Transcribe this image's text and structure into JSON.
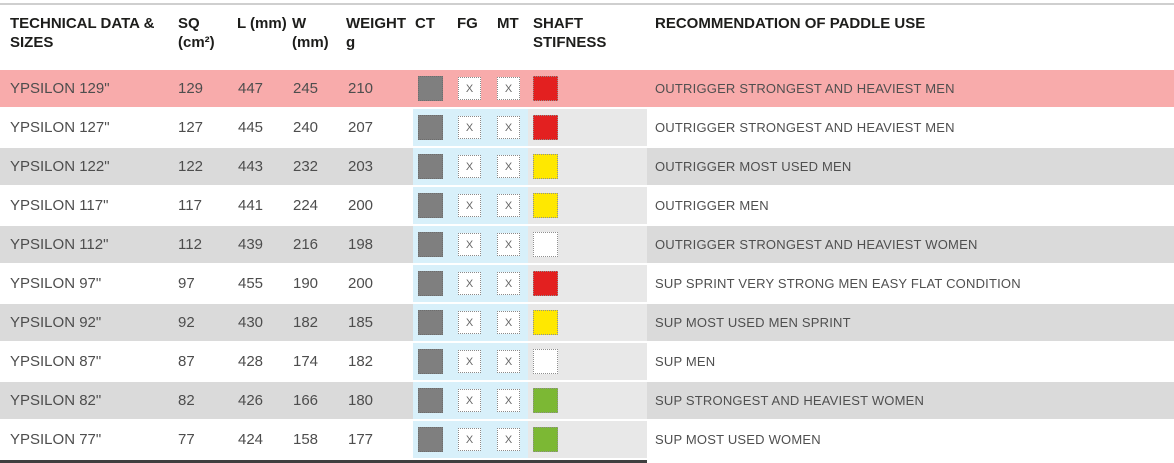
{
  "table": {
    "headers": {
      "name": "TECHNICAL DATA & SIZES",
      "sq": "SQ (cm²)",
      "l": "L (mm)",
      "w": "W (mm)",
      "weight": "WEIGHT g",
      "ct": "CT",
      "fg": "FG",
      "mt": "MT",
      "shaft": "SHAFT STIFNESS",
      "rec": "RECOMMENDATION OF PADDLE USE"
    },
    "rows": [
      {
        "name": "YPSILON 129\"",
        "sq": "129",
        "l": "447",
        "w": "245",
        "weight": "210",
        "ct": true,
        "fg": "x",
        "mt": "x",
        "shaft": "red",
        "rec": "OUTRIGGER STRONGEST AND HEAVIEST MEN",
        "highlight": true
      },
      {
        "name": "YPSILON 127\"",
        "sq": "127",
        "l": "445",
        "w": "240",
        "weight": "207",
        "ct": true,
        "fg": "x",
        "mt": "x",
        "shaft": "red",
        "rec": "OUTRIGGER STRONGEST AND HEAVIEST MEN",
        "highlight": false
      },
      {
        "name": "YPSILON 122\"",
        "sq": "122",
        "l": "443",
        "w": "232",
        "weight": "203",
        "ct": true,
        "fg": "x",
        "mt": "x",
        "shaft": "yellow",
        "rec": "OUTRIGGER MOST USED MEN",
        "highlight": false
      },
      {
        "name": "YPSILON 117\"",
        "sq": "117",
        "l": "441",
        "w": "224",
        "weight": "200",
        "ct": true,
        "fg": "x",
        "mt": "x",
        "shaft": "yellow",
        "rec": "OUTRIGGER MEN",
        "highlight": false
      },
      {
        "name": "YPSILON 112\"",
        "sq": "112",
        "l": "439",
        "w": "216",
        "weight": "198",
        "ct": true,
        "fg": "x",
        "mt": "x",
        "shaft": "white",
        "rec": "OUTRIGGER STRONGEST AND HEAVIEST WOMEN",
        "highlight": false
      },
      {
        "name": "YPSILON 97\"",
        "sq": "97",
        "l": "455",
        "w": "190",
        "weight": "200",
        "ct": true,
        "fg": "x",
        "mt": "x",
        "shaft": "red",
        "rec": "SUP SPRINT VERY STRONG MEN EASY FLAT CONDITION",
        "highlight": false
      },
      {
        "name": "YPSILON 92\"",
        "sq": "92",
        "l": "430",
        "w": "182",
        "weight": "185",
        "ct": true,
        "fg": "x",
        "mt": "x",
        "shaft": "yellow",
        "rec": "SUP MOST USED MEN SPRINT",
        "highlight": false
      },
      {
        "name": "YPSILON 87\"",
        "sq": "87",
        "l": "428",
        "w": "174",
        "weight": "182",
        "ct": true,
        "fg": "x",
        "mt": "x",
        "shaft": "white",
        "rec": "SUP MEN",
        "highlight": false
      },
      {
        "name": "YPSILON 82\"",
        "sq": "82",
        "l": "426",
        "w": "166",
        "weight": "180",
        "ct": true,
        "fg": "x",
        "mt": "x",
        "shaft": "green",
        "rec": "SUP STRONGEST AND HEAVIEST WOMEN",
        "highlight": false
      },
      {
        "name": "YPSILON 77\"",
        "sq": "77",
        "l": "424",
        "w": "158",
        "weight": "177",
        "ct": true,
        "fg": "x",
        "mt": "x",
        "shaft": "green",
        "rec": "SUP MOST USED WOMEN",
        "highlight": false
      }
    ]
  },
  "colors": {
    "highlight_row": "#f8abab",
    "stripe_gray": "#dadada",
    "blue_band": "#d8f0fa",
    "shaft_band": "#e8e8e8",
    "ct_square": "#7f7f7f",
    "shaft": {
      "red": "#e32020",
      "yellow": "#ffe800",
      "white": "#ffffff",
      "green": "#7cb834"
    }
  }
}
